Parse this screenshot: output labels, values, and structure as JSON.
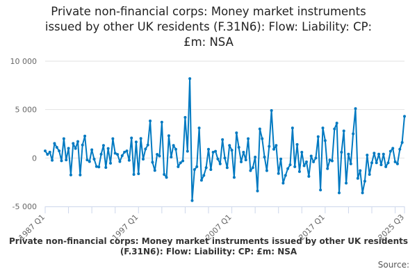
{
  "chart_data": {
    "type": "line",
    "title": [
      "Private non-financial corps: Money market instruments",
      "issued by other UK residents (F.31N6): Flow: Liability: CP:",
      "£m: NSA"
    ],
    "footer_title": "Private non-financial corps: Money market instruments issued by other UK residents (F.31N6): Flow: Liability: CP: £m: NSA",
    "source": "Source:",
    "frequency": "quarterly",
    "x_start": "1987 Q1",
    "x_end": "2025 Q3",
    "x_tick_labels": [
      "1987 Q1",
      "1997 Q1",
      "2007 Q1",
      "2017 Q1",
      "2025 Q3"
    ],
    "y_ticks": [
      10000,
      5000,
      0,
      -5000
    ],
    "y_tick_labels": [
      "10 000",
      "5 000",
      "0",
      "-5 000"
    ],
    "ylim": [
      -5000,
      10000
    ],
    "grid": "horizontal",
    "line_color": "#0079c1",
    "values": [
      730,
      370,
      610,
      -240,
      1500,
      1100,
      730,
      -290,
      2000,
      -200,
      1000,
      -1750,
      1500,
      980,
      1700,
      -1750,
      1340,
      2270,
      -200,
      -370,
      850,
      -120,
      -880,
      -930,
      390,
      1300,
      -980,
      980,
      -540,
      2000,
      490,
      370,
      -370,
      240,
      610,
      730,
      -240,
      2070,
      -1700,
      1660,
      -1630,
      2020,
      -120,
      930,
      1340,
      3830,
      -440,
      -1290,
      370,
      200,
      3700,
      -1700,
      -2000,
      2300,
      100,
      1300,
      900,
      -900,
      -500,
      -300,
      4200,
      700,
      8200,
      -4400,
      -1200,
      -900,
      3100,
      -2300,
      -1800,
      -1000,
      900,
      -1200,
      600,
      700,
      -100,
      -600,
      1900,
      0,
      -1000,
      1300,
      800,
      -2000,
      2600,
      1100,
      -400,
      600,
      -200,
      2000,
      -1300,
      -1000,
      100,
      -3400,
      3000,
      2000,
      100,
      -1300,
      1200,
      4900,
      900,
      1300,
      -1600,
      -100,
      -2600,
      -1800,
      -1100,
      -700,
      3100,
      -900,
      1400,
      -1400,
      600,
      -800,
      -400,
      -1900,
      200,
      -400,
      0,
      2200,
      -3300,
      3100,
      1800,
      -1100,
      -200,
      -300,
      3000,
      3600,
      -3600,
      600,
      2800,
      -2600,
      400,
      -600,
      2500,
      5100,
      -2100,
      -1300,
      -3600,
      -2400,
      300,
      -1700,
      -500,
      500,
      -500,
      400,
      -700,
      400,
      -900,
      -500,
      700,
      1000,
      -400,
      -600,
      900,
      1600,
      4300
    ]
  }
}
